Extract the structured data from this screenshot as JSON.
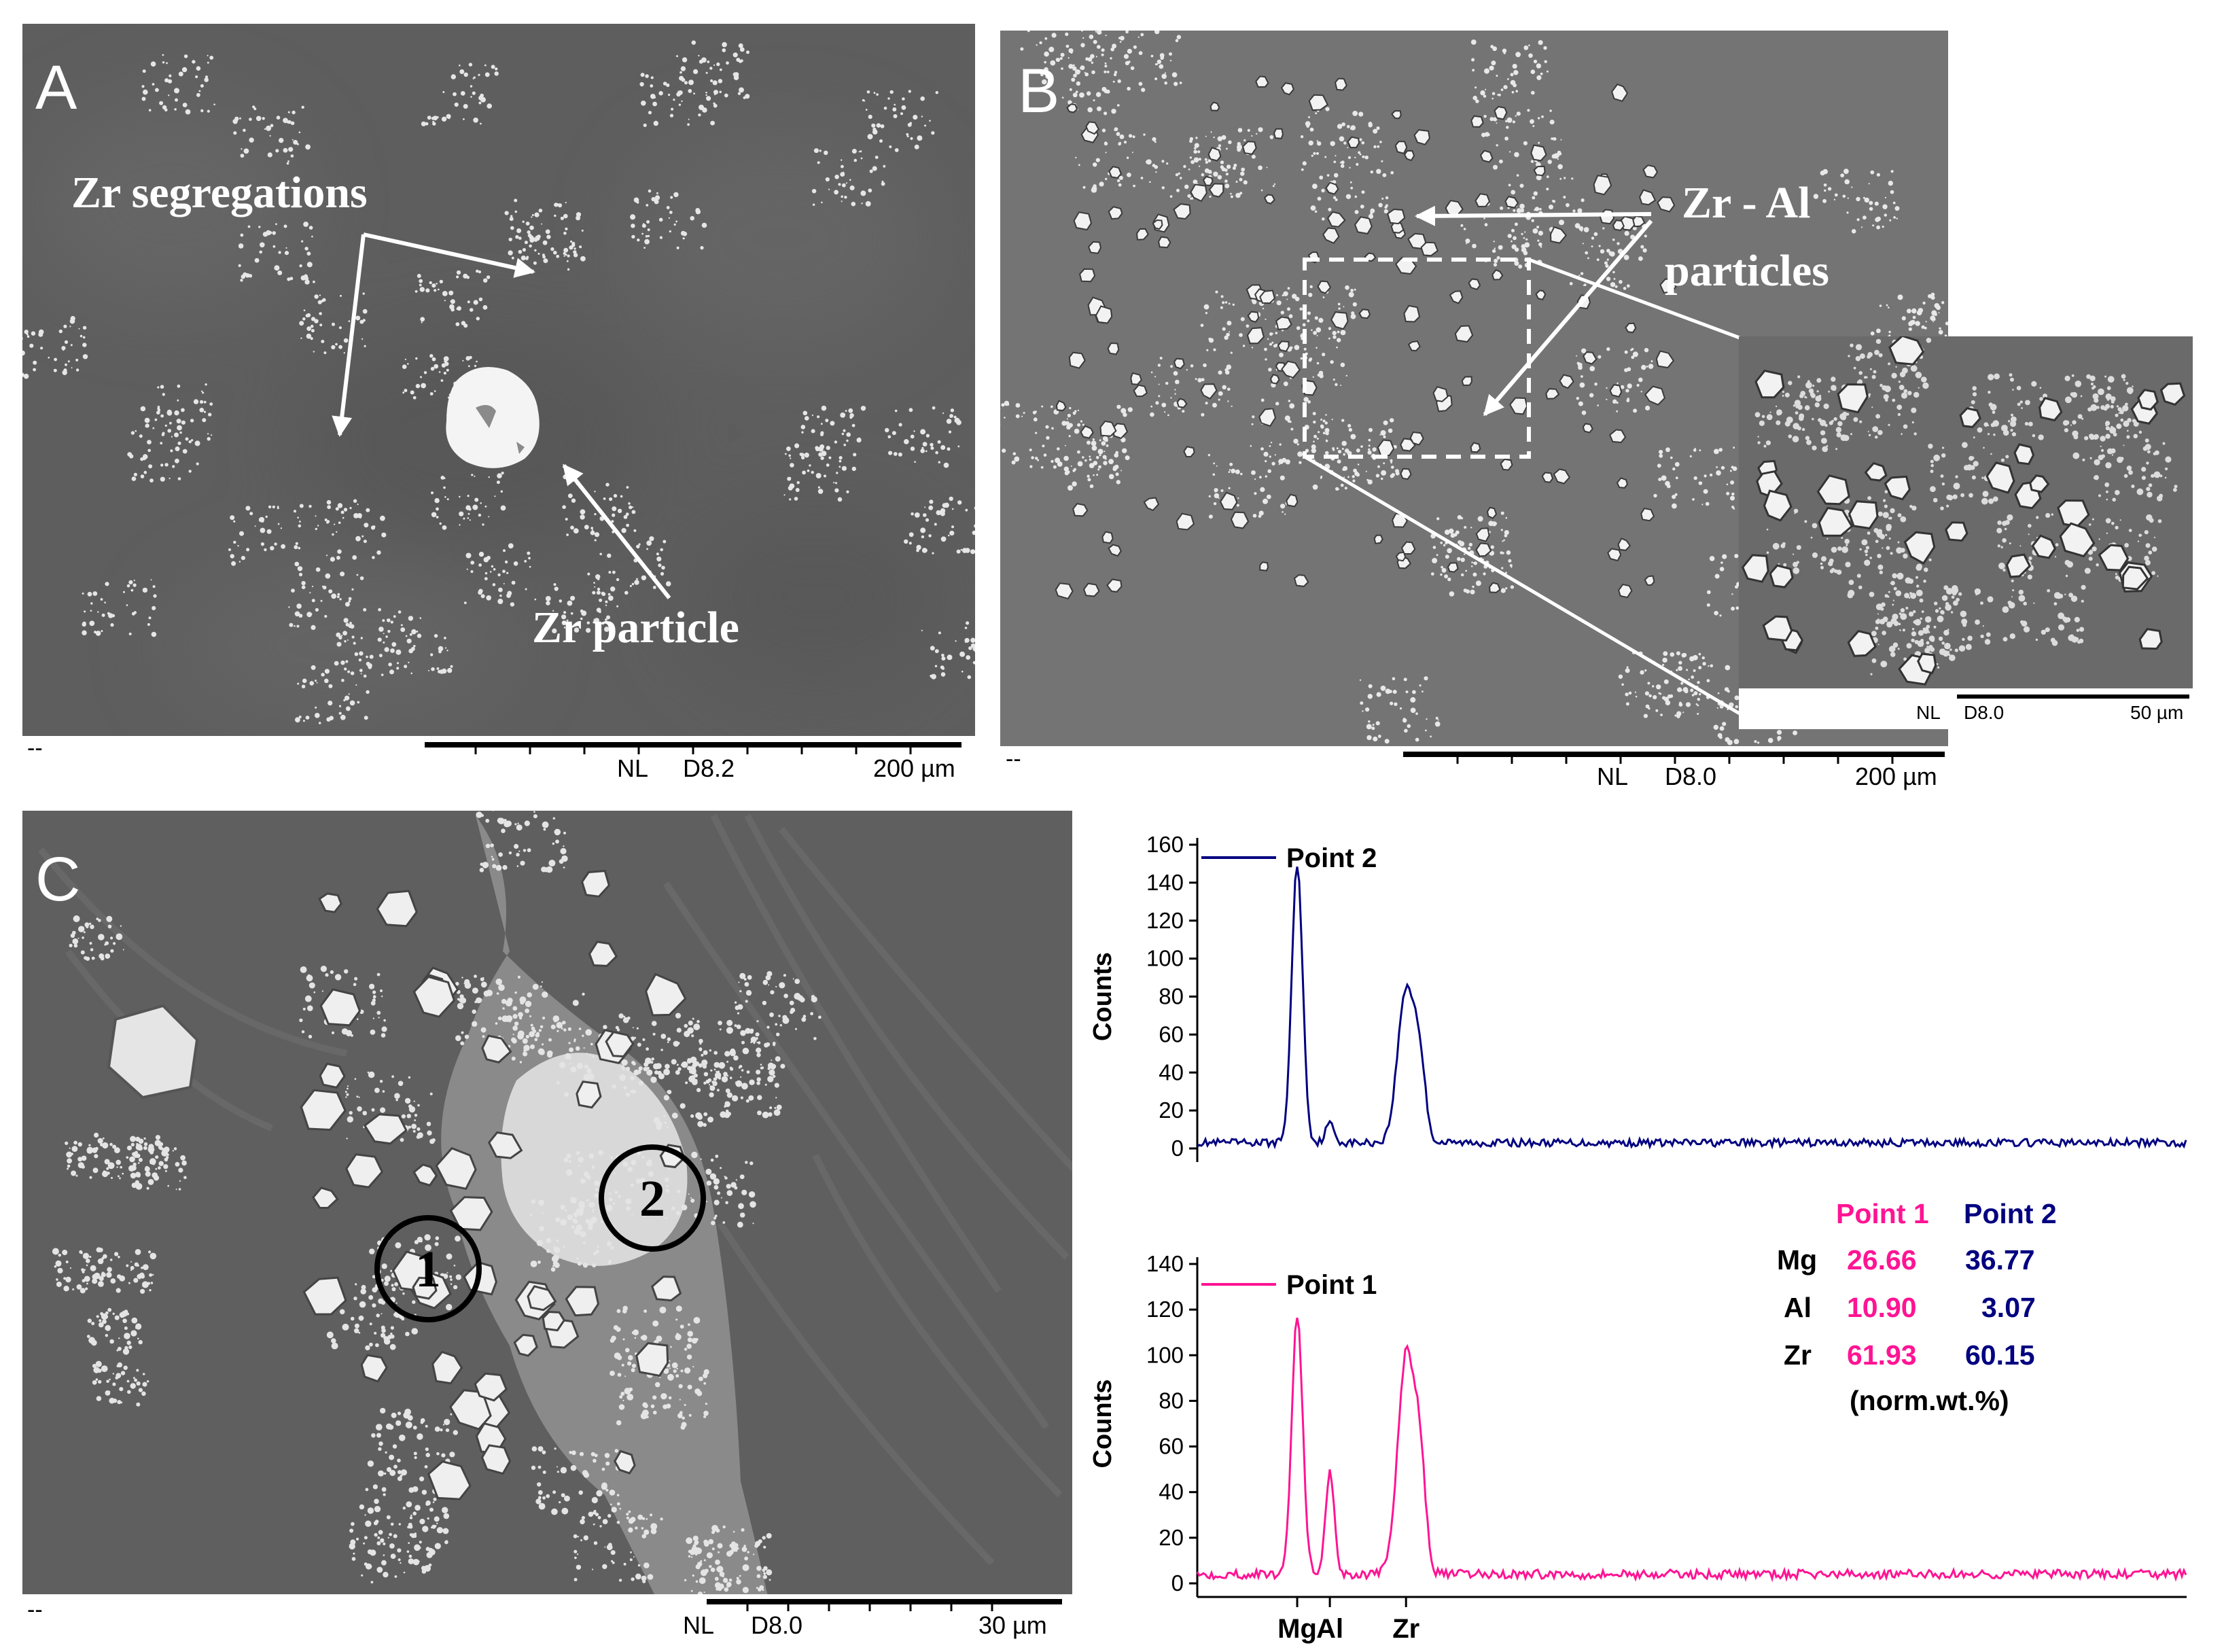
{
  "colors": {
    "point1": "#ff1493",
    "point2": "#000080",
    "sem_background": "#5c5c5c",
    "particles": "#e8e8e8"
  },
  "panel_a": {
    "letter": "A",
    "label_segregations": "Zr segregations",
    "label_particle": "Zr particle",
    "footer_dash": "--",
    "scale_nl": "NL",
    "scale_detector": "D8.2",
    "scale_length": "200 µm"
  },
  "panel_b": {
    "letter": "B",
    "label_line1": "Zr - Al",
    "label_line2": "particles",
    "footer_dash": "--",
    "scale_nl": "NL",
    "scale_detector": "D8.0",
    "scale_length": "200 µm",
    "inset": {
      "scale_nl": "NL",
      "scale_detector": "D8.0",
      "scale_length": "50 µm"
    }
  },
  "panel_c": {
    "letter": "C",
    "circle_1": "1",
    "circle_2": "2",
    "footer_dash": "--",
    "scale_nl": "NL",
    "scale_detector": "D8.0",
    "scale_length": "30 µm"
  },
  "chart_data": [
    {
      "type": "line",
      "series": [
        {
          "name": "Point 2",
          "color": "#000080"
        }
      ],
      "ylabel": "Counts",
      "ylim": [
        0,
        160
      ],
      "yticks": [
        "160",
        "140",
        "120",
        "100",
        "80",
        "60",
        "40",
        "20",
        "0"
      ],
      "peaks": [
        {
          "element": "Mg",
          "counts": 150
        },
        {
          "element": "Al",
          "counts": 13
        },
        {
          "element": "Zr",
          "counts": 83
        }
      ],
      "baseline_counts": 3
    },
    {
      "type": "line",
      "series": [
        {
          "name": "Point 1",
          "color": "#ff1493"
        }
      ],
      "ylabel": "Counts",
      "ylim": [
        0,
        140
      ],
      "yticks": [
        "140",
        "120",
        "100",
        "80",
        "60",
        "40",
        "20",
        "0"
      ],
      "xticks": [
        "Mg",
        "Al",
        "Zr"
      ],
      "peaks": [
        {
          "element": "Mg",
          "counts": 118
        },
        {
          "element": "Al",
          "counts": 49
        },
        {
          "element": "Zr",
          "counts": 99
        }
      ],
      "baseline_counts": 4
    }
  ],
  "composition_table": {
    "headers": [
      "",
      "Point 1",
      "Point 2"
    ],
    "rows": [
      {
        "element": "Mg",
        "point1": "26.66",
        "point2": "36.77"
      },
      {
        "element": "Al",
        "point1": "10.90",
        "point2": "3.07"
      },
      {
        "element": "Zr",
        "point1": "61.93",
        "point2": "60.15"
      }
    ],
    "units": "(norm.wt.%)"
  }
}
